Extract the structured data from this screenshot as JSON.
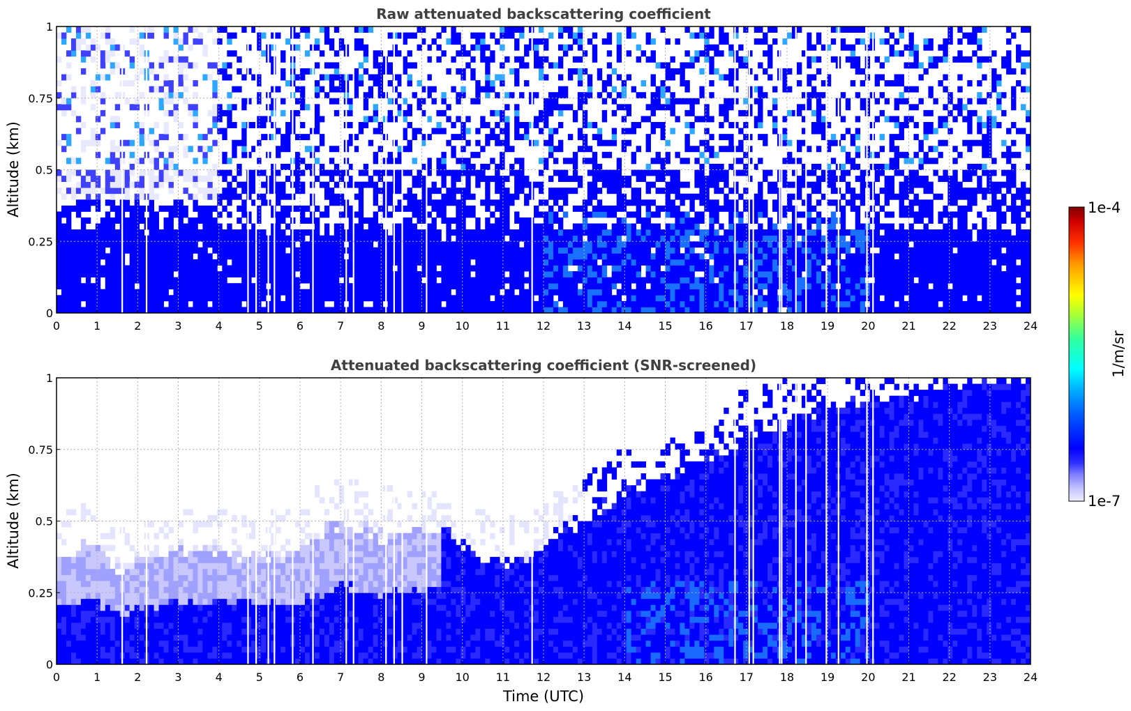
{
  "chart_data": [
    {
      "type": "heatmap",
      "title": "Raw attenuated backscattering coefficient",
      "xlabel": "",
      "ylabel": "Altitude (km)",
      "xlim": [
        0,
        24
      ],
      "ylim": [
        0,
        1
      ],
      "xticks": [
        0,
        1,
        2,
        3,
        4,
        5,
        6,
        7,
        8,
        9,
        10,
        11,
        12,
        13,
        14,
        15,
        16,
        17,
        18,
        19,
        20,
        21,
        22,
        23,
        24
      ],
      "yticks": [
        0,
        0.25,
        0.5,
        0.75,
        1
      ],
      "ytick_labels": [
        "0",
        "0.25",
        "0.5",
        "0.75",
        "1"
      ],
      "grid": true,
      "colorscale": "jet",
      "field": "noisy",
      "data_gaps_hours": [
        1.6,
        2.2,
        4.7,
        4.9,
        5.2,
        5.35,
        5.8,
        6.3,
        7.12,
        7.3,
        8.1,
        8.3,
        8.5,
        9.1,
        11.7,
        16.7,
        17.05,
        17.15,
        17.8,
        17.85,
        18.2,
        18.45,
        18.95,
        19.25,
        19.95,
        20.1
      ]
    },
    {
      "type": "heatmap",
      "title": "Attenuated backscattering coefficient (SNR-screened)",
      "xlabel": "Time (UTC)",
      "ylabel": "Altitude (km)",
      "xlim": [
        0,
        24
      ],
      "ylim": [
        0,
        1
      ],
      "xticks": [
        0,
        1,
        2,
        3,
        4,
        5,
        6,
        7,
        8,
        9,
        10,
        11,
        12,
        13,
        14,
        15,
        16,
        17,
        18,
        19,
        20,
        21,
        22,
        23,
        24
      ],
      "yticks": [
        0,
        0.25,
        0.5,
        0.75,
        1
      ],
      "ytick_labels": [
        "0",
        "0.25",
        "0.5",
        "0.75",
        "1"
      ],
      "grid": true,
      "colorscale": "jet",
      "field": "screened",
      "boundary_layer_top_km": [
        [
          0,
          0.35
        ],
        [
          0.8,
          0.43
        ],
        [
          1.5,
          0.33
        ],
        [
          3,
          0.4
        ],
        [
          4,
          0.4
        ],
        [
          5,
          0.38
        ],
        [
          6,
          0.4
        ],
        [
          7,
          0.5
        ],
        [
          8,
          0.45
        ],
        [
          9,
          0.47
        ],
        [
          9.8,
          0.45
        ],
        [
          10.5,
          0.38
        ],
        [
          11.5,
          0.35
        ],
        [
          12.2,
          0.45
        ],
        [
          13,
          0.5
        ],
        [
          14,
          0.6
        ],
        [
          15,
          0.65
        ],
        [
          16,
          0.7
        ],
        [
          17,
          0.8
        ],
        [
          18,
          0.85
        ],
        [
          19,
          0.9
        ],
        [
          20,
          0.92
        ],
        [
          21,
          0.95
        ],
        [
          22,
          0.98
        ],
        [
          24,
          1.0
        ]
      ],
      "data_gaps_hours": [
        1.6,
        2.2,
        4.7,
        4.9,
        5.2,
        5.35,
        5.8,
        6.3,
        7.12,
        7.3,
        8.1,
        8.3,
        8.5,
        9.1,
        11.7,
        16.7,
        17.05,
        17.15,
        17.8,
        17.85,
        18.2,
        18.45,
        18.95,
        19.25,
        19.95,
        20.1
      ]
    }
  ],
  "colorbar": {
    "label": "1/m/sr",
    "max_label": "1e-4",
    "min_label": "1e-7",
    "scale": "log",
    "range": [
      1e-07,
      0.0001
    ]
  }
}
